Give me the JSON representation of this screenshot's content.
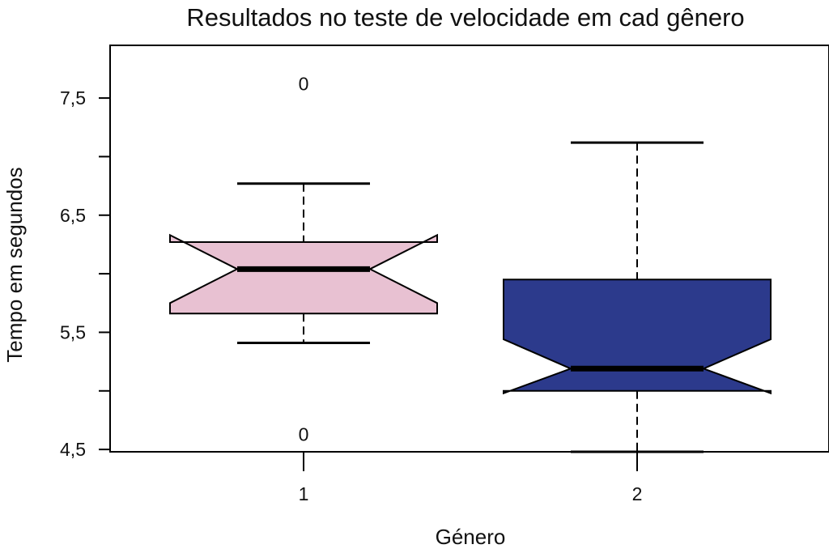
{
  "chart_data": {
    "type": "boxplot",
    "title": "Resultados no teste de velocidade em cad gênero",
    "xlabel": "Género",
    "ylabel": "Tempo em segundos",
    "categories": [
      "1",
      "2"
    ],
    "ylim": [
      4.48,
      7.95
    ],
    "y_ticks": [
      4.5,
      5.0,
      5.5,
      6.0,
      6.5,
      7.0,
      7.5
    ],
    "y_tick_labels": [
      "4,5",
      "",
      "5,5",
      "",
      "6,5",
      "",
      "7,5"
    ],
    "notched": true,
    "boxes": [
      {
        "category": "1",
        "color": "#e8c1d2",
        "whisker_low": 5.41,
        "q1": 5.66,
        "median": 6.04,
        "q3": 6.27,
        "whisker_high": 6.77,
        "notch_low": 5.75,
        "notch_high": 6.33,
        "outliers": [
          {
            "value": 7.62,
            "label": "0"
          },
          {
            "value": 4.63,
            "label": "0"
          }
        ]
      },
      {
        "category": "2",
        "color": "#2c3a8c",
        "whisker_low": 4.48,
        "q1": 5.0,
        "median": 5.19,
        "q3": 5.95,
        "whisker_high": 7.12,
        "notch_low": 4.98,
        "notch_high": 5.44,
        "outliers": []
      }
    ],
    "grid": false
  }
}
